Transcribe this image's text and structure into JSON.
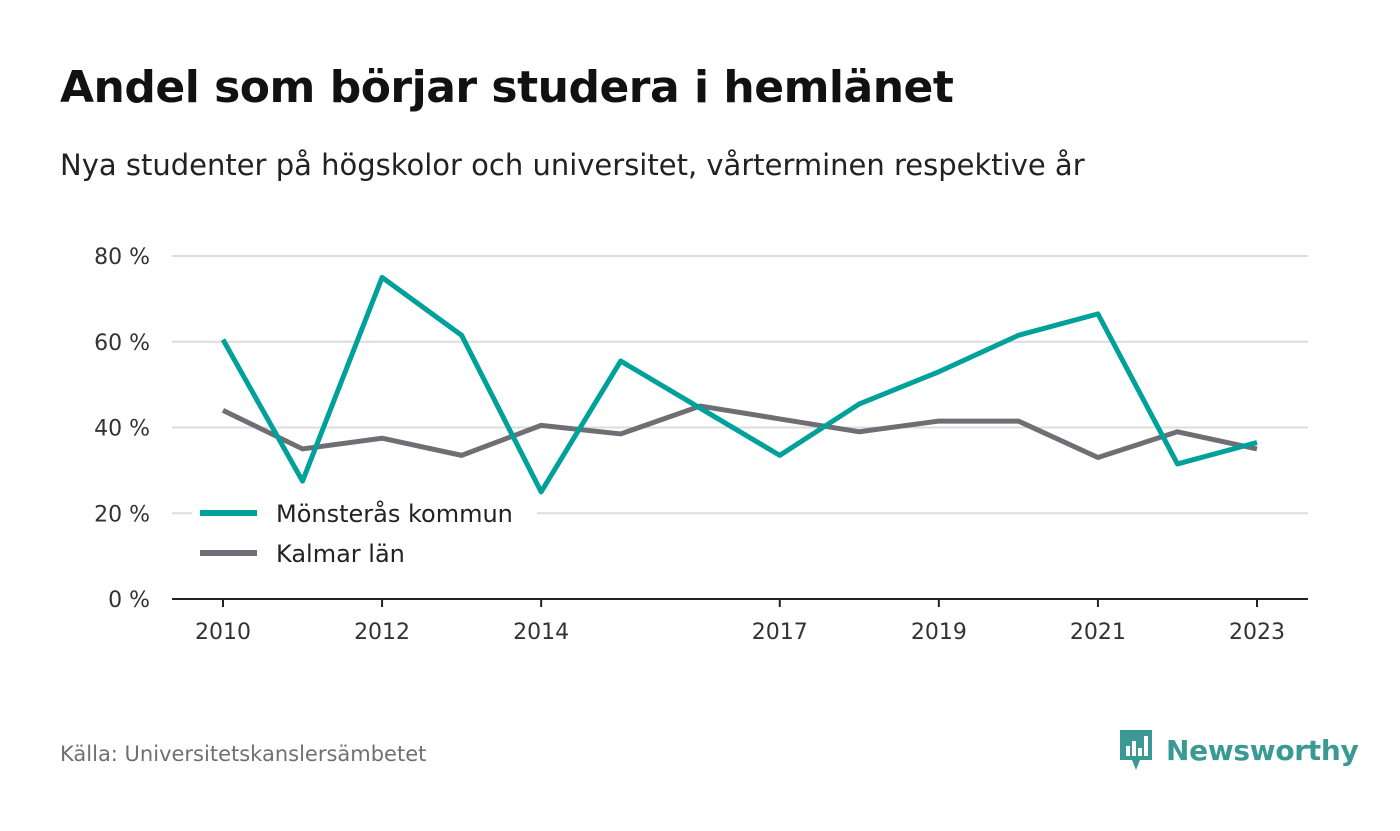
{
  "chart_data": {
    "type": "line",
    "title": "Andel som börjar studera i hemlänet",
    "subtitle": "Nya studenter på högskolor och universitet, vårterminen respektive år",
    "x": [
      2010,
      2011,
      2012,
      2013,
      2014,
      2015,
      2016,
      2017,
      2018,
      2019,
      2020,
      2021,
      2022,
      2023
    ],
    "x_tick_values": [
      2010,
      2012,
      2014,
      2017,
      2019,
      2021,
      2023
    ],
    "x_tick_labels": [
      "2010",
      "2012",
      "2014",
      "2017",
      "2019",
      "2021",
      "2023"
    ],
    "y_tick_values": [
      0,
      20,
      40,
      60,
      80
    ],
    "y_tick_labels": [
      "0 %",
      "20 %",
      "40 %",
      "60 %",
      "80 %"
    ],
    "ylim": [
      0,
      80
    ],
    "xlabel": "",
    "ylabel": "",
    "grid": true,
    "legend_position": "bottom-left",
    "series": [
      {
        "name": "Mönsterås kommun",
        "color": "#00a19a",
        "values": [
          60.5,
          27.5,
          75,
          61.5,
          25,
          55.5,
          44.5,
          33.5,
          45.5,
          53,
          61.5,
          66.5,
          31.5,
          36.5
        ]
      },
      {
        "name": "Kalmar län",
        "color": "#6f6e74",
        "values": [
          44,
          35,
          37.5,
          33.5,
          40.5,
          38.5,
          45,
          42,
          39,
          41.5,
          41.5,
          33,
          39,
          35
        ]
      }
    ]
  },
  "footer": {
    "source": "Källa: Universitetskanslersämbetet",
    "brand": "Newsworthy",
    "brand_icon": "bar-chart-speech-bubble-icon",
    "brand_color": "#3a9a93"
  }
}
